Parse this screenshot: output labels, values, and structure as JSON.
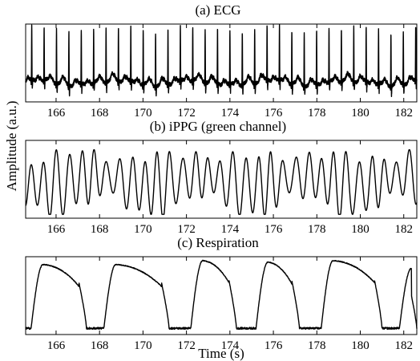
{
  "chart_data": [
    {
      "type": "line",
      "title": "(a) ECG",
      "xlim": [
        164.6,
        182.6
      ],
      "xticks": [
        166,
        168,
        170,
        172,
        174,
        176,
        178,
        180,
        182
      ],
      "xticklabels": [
        "166",
        "168",
        "170",
        "172",
        "174",
        "176",
        "178",
        "180",
        "182"
      ],
      "ylim": [
        0,
        1
      ],
      "yticks_shown": false,
      "beat_times_s": [
        164.88,
        165.45,
        166.02,
        166.59,
        167.16,
        167.73,
        168.3,
        168.87,
        169.44,
        170.01,
        170.58,
        171.15,
        171.72,
        172.29,
        172.86,
        173.43,
        174.0,
        174.57,
        175.14,
        175.71,
        176.28,
        176.85,
        177.42,
        177.99,
        178.56,
        179.13,
        179.7,
        180.27,
        180.84,
        181.41,
        181.98,
        182.55
      ],
      "r_peak_amplitude": 0.95,
      "baseline_amplitude": 0.25
    },
    {
      "type": "line",
      "title": "(b) iPPG (green channel)",
      "xlim": [
        164.6,
        182.6
      ],
      "xticks": [
        166,
        168,
        170,
        172,
        174,
        176,
        178,
        180,
        182
      ],
      "xticklabels": [
        "166",
        "168",
        "170",
        "172",
        "174",
        "176",
        "178",
        "180",
        "182"
      ],
      "ylim": [
        0,
        1
      ],
      "yticks_shown": false,
      "approx_pulse_period_s": 0.58,
      "amplitude_range": [
        0.05,
        0.88
      ]
    },
    {
      "type": "line",
      "title": "(c) Respiration",
      "xlabel": "Time (s)",
      "xlim": [
        164.6,
        182.6
      ],
      "xticks": [
        166,
        168,
        170,
        172,
        174,
        176,
        178,
        180,
        182
      ],
      "xticklabels": [
        "166",
        "168",
        "170",
        "172",
        "174",
        "176",
        "178",
        "180",
        "182"
      ],
      "ylim": [
        0,
        1
      ],
      "yticks_shown": false,
      "breaths": [
        {
          "start": 164.85,
          "end": 167.4,
          "peak": 0.9
        },
        {
          "start": 168.2,
          "end": 171.2,
          "peak": 0.9
        },
        {
          "start": 172.2,
          "end": 174.3,
          "peak": 0.95
        },
        {
          "start": 175.2,
          "end": 177.2,
          "peak": 0.93
        },
        {
          "start": 178.2,
          "end": 181.0,
          "peak": 0.95
        },
        {
          "start": 181.8,
          "end": 182.6,
          "peak": 0.85
        }
      ],
      "trough_level": 0.08
    }
  ],
  "shared_ylabel": "Amplitude (a.u.)",
  "colors": {
    "line": "#000000",
    "axes": "#000000",
    "background": "#ffffff"
  }
}
